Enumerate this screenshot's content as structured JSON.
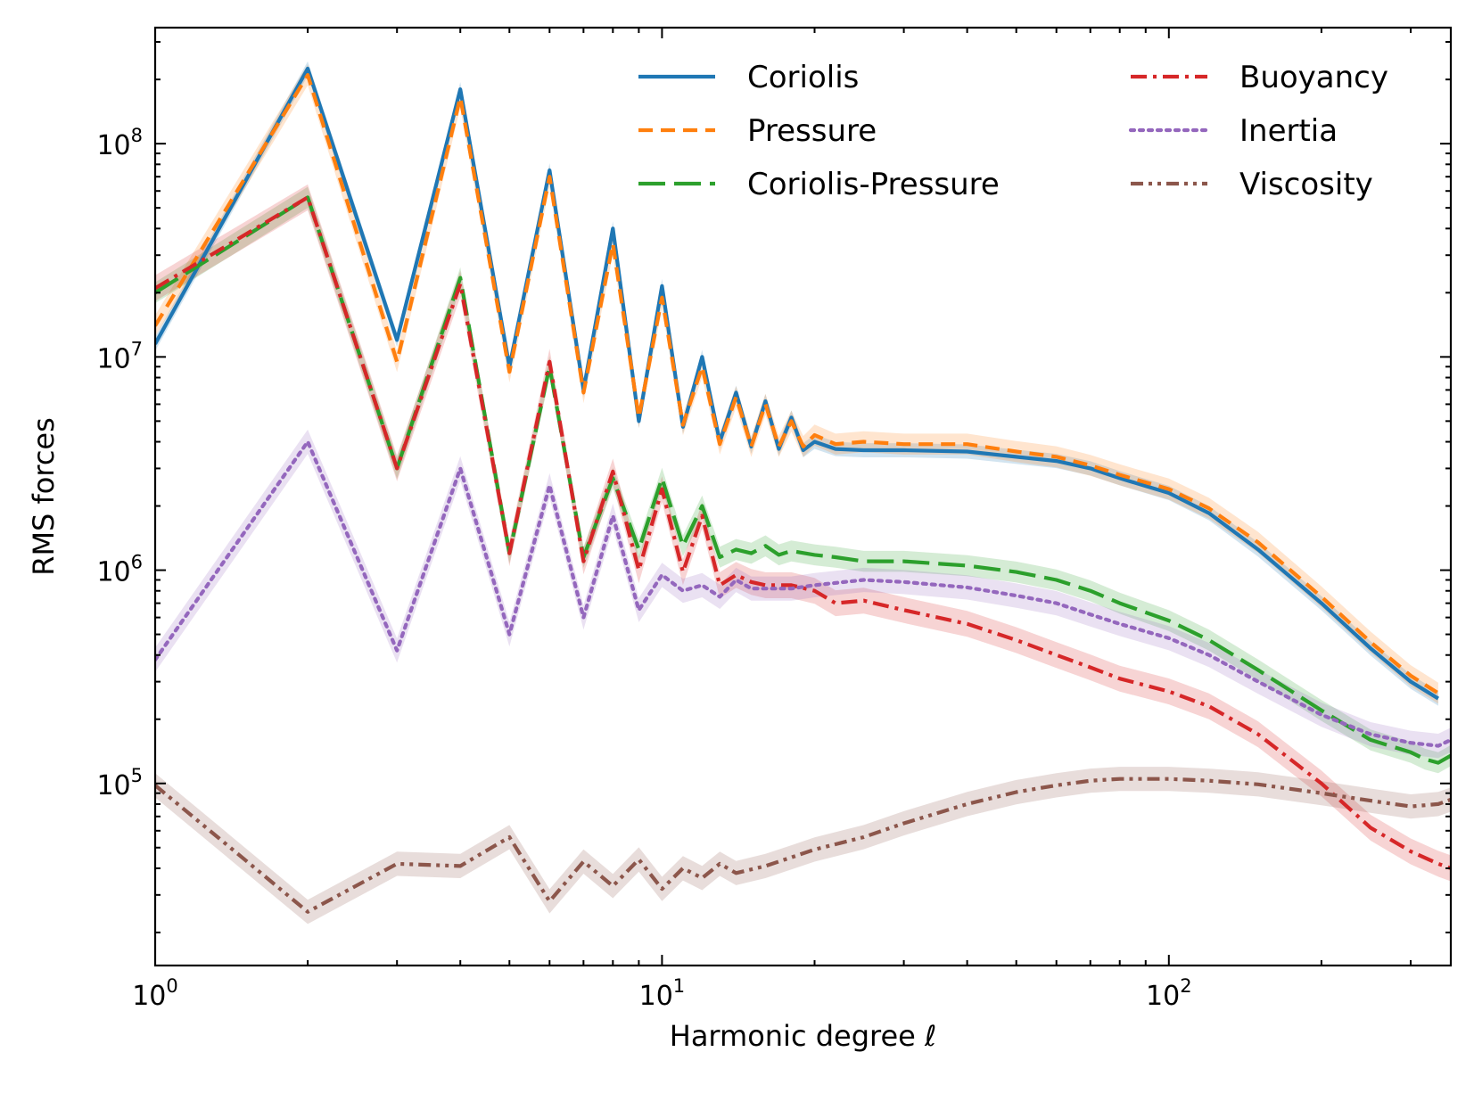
{
  "chart_data": {
    "type": "line",
    "xscale": "log",
    "yscale": "log",
    "xlim": [
      1,
      360
    ],
    "ylim": [
      14000,
      350000000
    ],
    "xlabel": "Harmonic degree ℓ",
    "ylabel": "RMS forces",
    "x_ticks": [
      {
        "value": 1,
        "base": "10",
        "exp": "0"
      },
      {
        "value": 10,
        "base": "10",
        "exp": "1"
      },
      {
        "value": 100,
        "base": "10",
        "exp": "2"
      }
    ],
    "y_ticks": [
      {
        "value": 100000,
        "base": "10",
        "exp": "5"
      },
      {
        "value": 1000000,
        "base": "10",
        "exp": "6"
      },
      {
        "value": 10000000,
        "base": "10",
        "exp": "7"
      },
      {
        "value": 100000000,
        "base": "10",
        "exp": "8"
      }
    ],
    "legend": {
      "position": "top-right",
      "columns": 2
    },
    "series": [
      {
        "name": "Coriolis",
        "color": "#1f77b4",
        "style": "solid",
        "band": 0.08,
        "points": [
          [
            1,
            11500000
          ],
          [
            2,
            225000000
          ],
          [
            3,
            12000000
          ],
          [
            4,
            180000000
          ],
          [
            5,
            9000000
          ],
          [
            6,
            75000000
          ],
          [
            7,
            7000000
          ],
          [
            8,
            40000000
          ],
          [
            9,
            5000000
          ],
          [
            10,
            21500000
          ],
          [
            11,
            4700000
          ],
          [
            12,
            10000000
          ],
          [
            13,
            4000000
          ],
          [
            14,
            6800000
          ],
          [
            15,
            3800000
          ],
          [
            16,
            6200000
          ],
          [
            17,
            3700000
          ],
          [
            18,
            5200000
          ],
          [
            19,
            3650000
          ],
          [
            20,
            4000000
          ],
          [
            22,
            3700000
          ],
          [
            25,
            3650000
          ],
          [
            30,
            3650000
          ],
          [
            40,
            3600000
          ],
          [
            50,
            3400000
          ],
          [
            60,
            3250000
          ],
          [
            70,
            3000000
          ],
          [
            80,
            2700000
          ],
          [
            100,
            2300000
          ],
          [
            120,
            1850000
          ],
          [
            150,
            1250000
          ],
          [
            200,
            700000
          ],
          [
            250,
            430000
          ],
          [
            300,
            300000
          ],
          [
            340,
            250000
          ]
        ]
      },
      {
        "name": "Pressure",
        "color": "#ff7f0e",
        "style": "dashed",
        "band": 0.12,
        "points": [
          [
            1,
            14000000
          ],
          [
            2,
            210000000
          ],
          [
            3,
            9500000
          ],
          [
            4,
            165000000
          ],
          [
            5,
            8500000
          ],
          [
            6,
            70000000
          ],
          [
            7,
            6800000
          ],
          [
            8,
            34000000
          ],
          [
            9,
            5200000
          ],
          [
            10,
            19000000
          ],
          [
            11,
            4800000
          ],
          [
            12,
            9000000
          ],
          [
            13,
            3900000
          ],
          [
            14,
            6500000
          ],
          [
            15,
            3800000
          ],
          [
            16,
            6000000
          ],
          [
            17,
            3800000
          ],
          [
            18,
            5000000
          ],
          [
            19,
            3800000
          ],
          [
            20,
            4300000
          ],
          [
            22,
            3900000
          ],
          [
            25,
            4000000
          ],
          [
            30,
            3900000
          ],
          [
            40,
            3900000
          ],
          [
            50,
            3600000
          ],
          [
            60,
            3400000
          ],
          [
            70,
            3100000
          ],
          [
            80,
            2800000
          ],
          [
            100,
            2400000
          ],
          [
            120,
            1950000
          ],
          [
            150,
            1350000
          ],
          [
            200,
            750000
          ],
          [
            250,
            460000
          ],
          [
            300,
            320000
          ],
          [
            340,
            265000
          ]
        ]
      },
      {
        "name": "Coriolis-Pressure",
        "color": "#2ca02c",
        "style": "longdash",
        "band": 0.12,
        "points": [
          [
            1,
            20000000
          ],
          [
            2,
            56000000
          ],
          [
            3,
            3000000
          ],
          [
            4,
            23500000
          ],
          [
            5,
            1200000
          ],
          [
            6,
            9000000
          ],
          [
            7,
            1150000
          ],
          [
            8,
            2700000
          ],
          [
            9,
            1250000
          ],
          [
            10,
            2700000
          ],
          [
            11,
            1300000
          ],
          [
            12,
            2000000
          ],
          [
            13,
            1150000
          ],
          [
            14,
            1250000
          ],
          [
            15,
            1200000
          ],
          [
            16,
            1300000
          ],
          [
            17,
            1180000
          ],
          [
            18,
            1230000
          ],
          [
            20,
            1180000
          ],
          [
            22,
            1150000
          ],
          [
            25,
            1100000
          ],
          [
            30,
            1100000
          ],
          [
            40,
            1050000
          ],
          [
            50,
            980000
          ],
          [
            60,
            900000
          ],
          [
            70,
            800000
          ],
          [
            80,
            700000
          ],
          [
            100,
            580000
          ],
          [
            120,
            470000
          ],
          [
            150,
            340000
          ],
          [
            200,
            220000
          ],
          [
            250,
            160000
          ],
          [
            300,
            140000
          ],
          [
            320,
            130000
          ],
          [
            340,
            125000
          ],
          [
            360,
            135000
          ]
        ]
      },
      {
        "name": "Buoyancy",
        "color": "#d62728",
        "style": "dashdot",
        "band": 0.15,
        "points": [
          [
            1,
            21000000
          ],
          [
            2,
            56000000
          ],
          [
            3,
            3000000
          ],
          [
            4,
            22000000
          ],
          [
            5,
            1200000
          ],
          [
            6,
            9500000
          ],
          [
            7,
            1100000
          ],
          [
            8,
            2900000
          ],
          [
            9,
            1000000
          ],
          [
            10,
            2400000
          ],
          [
            11,
            980000
          ],
          [
            12,
            1800000
          ],
          [
            13,
            850000
          ],
          [
            14,
            950000
          ],
          [
            15,
            880000
          ],
          [
            16,
            850000
          ],
          [
            18,
            850000
          ],
          [
            20,
            800000
          ],
          [
            22,
            700000
          ],
          [
            25,
            720000
          ],
          [
            30,
            650000
          ],
          [
            40,
            560000
          ],
          [
            50,
            470000
          ],
          [
            60,
            400000
          ],
          [
            70,
            350000
          ],
          [
            80,
            310000
          ],
          [
            100,
            270000
          ],
          [
            120,
            230000
          ],
          [
            150,
            170000
          ],
          [
            200,
            100000
          ],
          [
            250,
            62000
          ],
          [
            300,
            48000
          ],
          [
            340,
            42000
          ],
          [
            360,
            40000
          ]
        ]
      },
      {
        "name": "Inertia",
        "color": "#9467bd",
        "style": "dotted",
        "band": 0.14,
        "points": [
          [
            1,
            380000
          ],
          [
            2,
            4000000
          ],
          [
            3,
            420000
          ],
          [
            4,
            3000000
          ],
          [
            5,
            500000
          ],
          [
            6,
            2500000
          ],
          [
            7,
            600000
          ],
          [
            8,
            1800000
          ],
          [
            9,
            650000
          ],
          [
            10,
            950000
          ],
          [
            11,
            800000
          ],
          [
            12,
            850000
          ],
          [
            13,
            750000
          ],
          [
            14,
            900000
          ],
          [
            15,
            820000
          ],
          [
            18,
            820000
          ],
          [
            20,
            850000
          ],
          [
            25,
            900000
          ],
          [
            30,
            880000
          ],
          [
            40,
            830000
          ],
          [
            50,
            760000
          ],
          [
            60,
            700000
          ],
          [
            70,
            620000
          ],
          [
            80,
            560000
          ],
          [
            100,
            480000
          ],
          [
            120,
            400000
          ],
          [
            150,
            300000
          ],
          [
            200,
            210000
          ],
          [
            250,
            170000
          ],
          [
            300,
            155000
          ],
          [
            340,
            150000
          ],
          [
            360,
            160000
          ]
        ]
      },
      {
        "name": "Viscosity",
        "color": "#8c564b",
        "style": "dashdotdot",
        "band": 0.14,
        "points": [
          [
            1,
            98000
          ],
          [
            2,
            25000
          ],
          [
            3,
            42000
          ],
          [
            4,
            41000
          ],
          [
            5,
            56000
          ],
          [
            6,
            28000
          ],
          [
            7,
            43000
          ],
          [
            8,
            33000
          ],
          [
            9,
            44000
          ],
          [
            10,
            32000
          ],
          [
            11,
            40000
          ],
          [
            12,
            36000
          ],
          [
            13,
            42000
          ],
          [
            14,
            38000
          ],
          [
            16,
            41000
          ],
          [
            18,
            45000
          ],
          [
            20,
            49000
          ],
          [
            25,
            56000
          ],
          [
            30,
            65000
          ],
          [
            40,
            80000
          ],
          [
            50,
            91000
          ],
          [
            60,
            98000
          ],
          [
            70,
            103000
          ],
          [
            80,
            105000
          ],
          [
            100,
            105000
          ],
          [
            120,
            103000
          ],
          [
            150,
            99000
          ],
          [
            200,
            90000
          ],
          [
            250,
            83000
          ],
          [
            300,
            78000
          ],
          [
            340,
            80000
          ],
          [
            360,
            84000
          ]
        ]
      }
    ]
  }
}
